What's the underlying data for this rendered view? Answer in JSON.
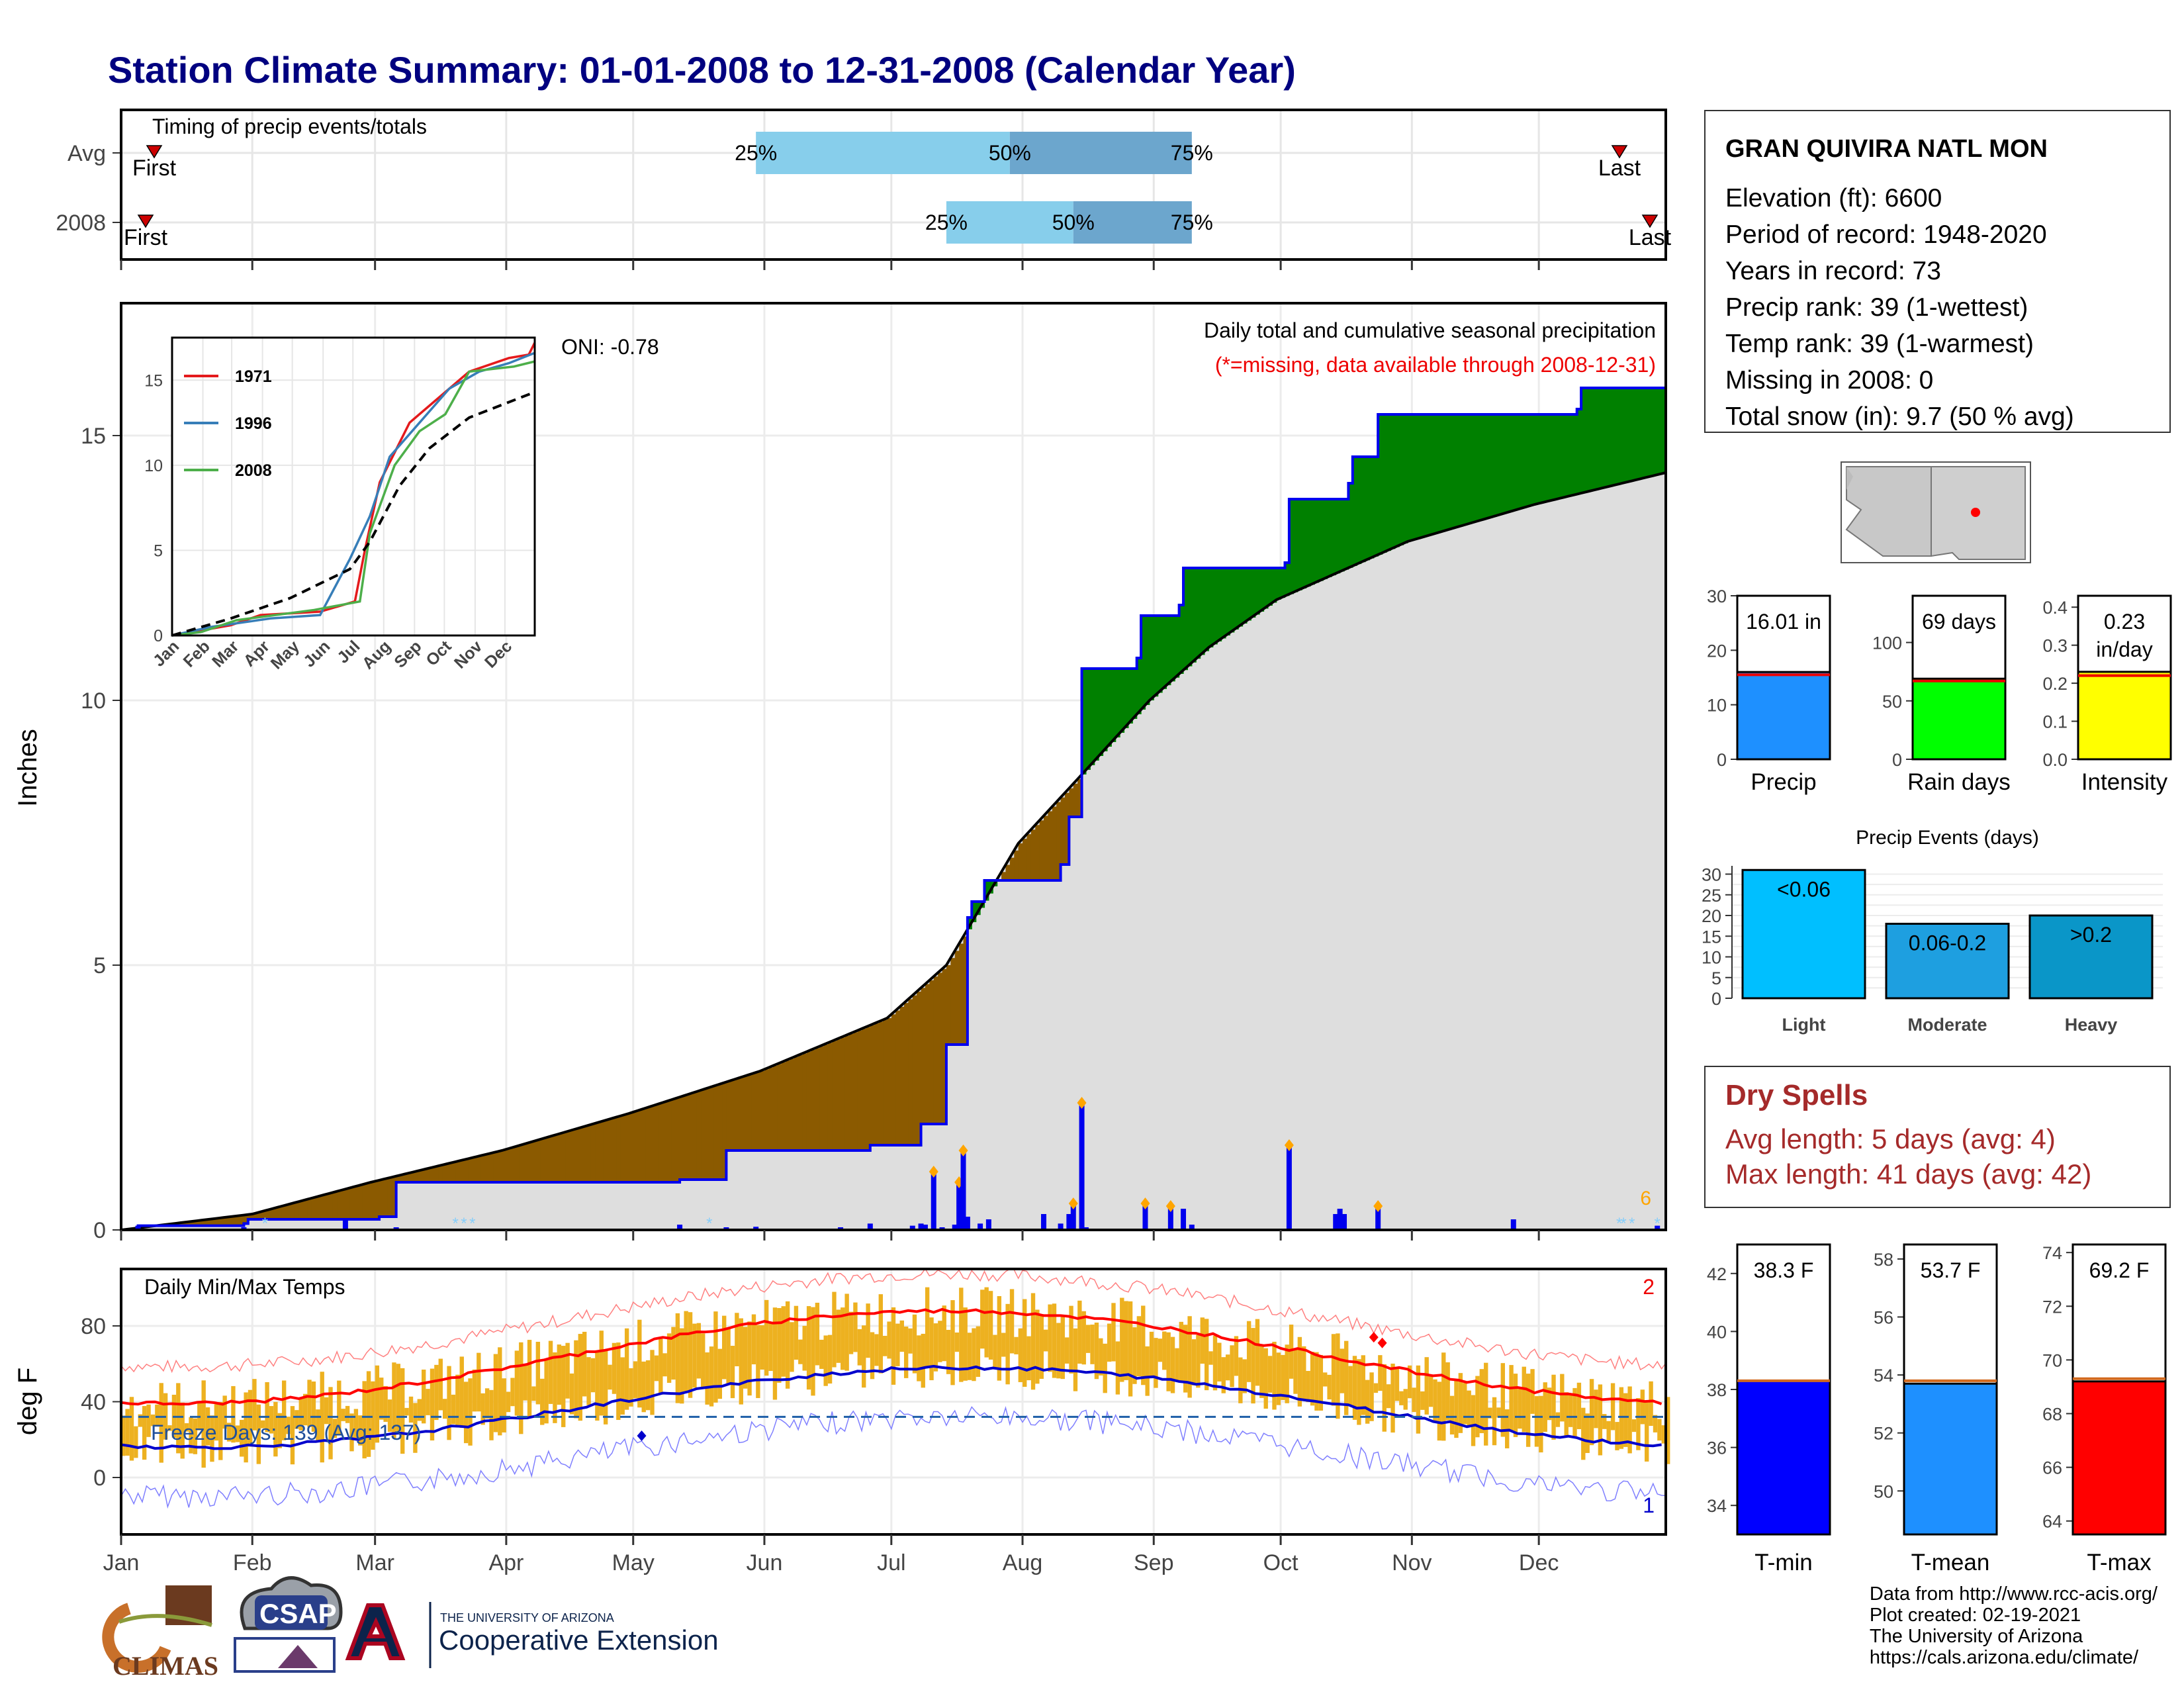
{
  "page": {
    "title": "Station Climate Summary: 01-01-2008 to 12-31-2008 (Calendar Year)"
  },
  "timing_panel": {
    "label": "Timing of precip events/totals",
    "rows": [
      {
        "label": "Avg",
        "first": "First",
        "last": "Last",
        "first_doy": 1,
        "last_doy": 362,
        "p25_doy": 151,
        "p50_doy": 211,
        "p75_doy": 254,
        "p25": "25%",
        "p50": "50%",
        "p75": "75%"
      },
      {
        "label": "2008",
        "first": "First",
        "last": "Last",
        "first_doy": 1,
        "last_doy": 366,
        "p25_doy": 196,
        "p50_doy": 226,
        "p75_doy": 254,
        "p25": "25%",
        "p50": "50%",
        "p75": "75%"
      }
    ]
  },
  "precip_panel": {
    "ylabel": "Inches",
    "annotation_title": "Daily total and cumulative seasonal precipitation",
    "annotation_missing": "(*=missing, data available through 2008-12-31)",
    "oni": "ONI: -0.78",
    "corner_count": "6",
    "yticks": [
      "0",
      "5",
      "10",
      "15"
    ]
  },
  "temp_panel": {
    "title": "Daily Min/Max Temps",
    "ylabel": "deg F",
    "freeze": "Freeze Days: 139 (Avg: 137)",
    "count_hot": "2",
    "count_cold": "1",
    "yticks": [
      "0",
      "40",
      "80"
    ]
  },
  "months": [
    "Jan",
    "Feb",
    "Mar",
    "Apr",
    "May",
    "Jun",
    "Jul",
    "Aug",
    "Sep",
    "Oct",
    "Nov",
    "Dec"
  ],
  "station": {
    "name": "GRAN QUIVIRA NATL MON",
    "lines": [
      "Elevation (ft): 6600",
      "Period of record: 1948-2020",
      "Years in record: 73",
      "Precip rank: 39 (1-wettest)",
      "Temp rank: 39 (1-warmest)",
      "Missing in 2008: 0",
      "Total snow (in): 9.7 (50 % avg)"
    ]
  },
  "dry_spells": {
    "title": "Dry Spells",
    "avg": "Avg length: 5 days (avg: 4)",
    "max": "Max length: 41 days (avg: 42)"
  },
  "credits": [
    "Data from http://www.rcc-acis.org/",
    "Plot created: 02-19-2021",
    "The University of Arizona",
    "https://cals.arizona.edu/climate/"
  ],
  "logos": {
    "climas": "CLIMAS",
    "csap": "CSAP",
    "ua_line1": "THE UNIVERSITY OF ARIZONA",
    "ua_line2": "Cooperative Extension"
  },
  "colors": {
    "above_normal": "#008000",
    "below_normal": "#8B5A00",
    "normal_fill": "#DEDEDE",
    "obs_line": "#0000EE",
    "tmax": "#FF0000",
    "tmin": "#0000CC",
    "bars": "#EDB120",
    "title": "#000080",
    "dry": "#A52A2A"
  },
  "chart_data": [
    {
      "id": "cumulative_precip",
      "type": "line",
      "xlabel": "",
      "ylabel": "Inches",
      "ylim": [
        0,
        17.5
      ],
      "x": [
        "Jan",
        "Feb",
        "Mar",
        "Apr",
        "May",
        "Jun",
        "Jul",
        "Aug",
        "Sep",
        "Oct",
        "Nov",
        "Dec"
      ],
      "series": [
        {
          "values_doy": [
            [
              1,
              0
            ],
            [
              5,
              0.08
            ],
            [
              30,
              0.12
            ],
            [
              31,
              0.2
            ],
            [
              62,
              0.25
            ],
            [
              66,
              0.9
            ],
            [
              133,
              0.95
            ],
            [
              144,
              1.5
            ],
            [
              178,
              1.6
            ],
            [
              190,
              2.0
            ],
            [
              196,
              3.5
            ],
            [
              201,
              5.9
            ],
            [
              202,
              6.2
            ],
            [
              205,
              6.6
            ],
            [
              223,
              6.9
            ],
            [
              225,
              7.8
            ],
            [
              228,
              10.6
            ],
            [
              241,
              10.8
            ],
            [
              242,
              11.6
            ],
            [
              251,
              11.8
            ],
            [
              252,
              12.5
            ],
            [
              276,
              12.6
            ],
            [
              277,
              13.8
            ],
            [
              291,
              14.1
            ],
            [
              292,
              14.6
            ],
            [
              298,
              15.4
            ],
            [
              345,
              15.5
            ],
            [
              346,
              15.9
            ],
            [
              366,
              16.1
            ]
          ]
        },
        {
          "values_doy": [
            [
              1,
              0
            ],
            [
              32,
              0.3
            ],
            [
              60,
              0.9
            ],
            [
              91,
              1.5
            ],
            [
              121,
              2.2
            ],
            [
              152,
              3.0
            ],
            [
              182,
              4.0
            ],
            [
              196,
              5.0
            ],
            [
              213,
              7.3
            ],
            [
              228,
              8.6
            ],
            [
              244,
              10.0
            ],
            [
              258,
              11.0
            ],
            [
              274,
              11.9
            ],
            [
              305,
              13.0
            ],
            [
              335,
              13.7
            ],
            [
              366,
              14.3
            ]
          ]
        }
      ],
      "daily_events": [
        {
          "doy": 5,
          "value": 0.08
        },
        {
          "doy": 30,
          "value": 0.05
        },
        {
          "doy": 54,
          "value": 0.18
        },
        {
          "doy": 66,
          "value": 0.05
        },
        {
          "doy": 133,
          "value": 0.1
        },
        {
          "doy": 144,
          "value": 0.05
        },
        {
          "doy": 151,
          "value": 0.06
        },
        {
          "doy": 171,
          "value": 0.05
        },
        {
          "doy": 178,
          "value": 0.12
        },
        {
          "doy": 188,
          "value": 0.08
        },
        {
          "doy": 190,
          "value": 0.12
        },
        {
          "doy": 191,
          "value": 0.1
        },
        {
          "doy": 193,
          "value": 1.1
        },
        {
          "doy": 195,
          "value": 0.05
        },
        {
          "doy": 198,
          "value": 0.1
        },
        {
          "doy": 199,
          "value": 0.9
        },
        {
          "doy": 200,
          "value": 1.5
        },
        {
          "doy": 201,
          "value": 0.25
        },
        {
          "doy": 204,
          "value": 0.12
        },
        {
          "doy": 206,
          "value": 0.2
        },
        {
          "doy": 219,
          "value": 0.3
        },
        {
          "doy": 223,
          "value": 0.12
        },
        {
          "doy": 225,
          "value": 0.3
        },
        {
          "doy": 226,
          "value": 0.5
        },
        {
          "doy": 228,
          "value": 2.4
        },
        {
          "doy": 229,
          "value": 0.05
        },
        {
          "doy": 243,
          "value": 0.5
        },
        {
          "doy": 249,
          "value": 0.45
        },
        {
          "doy": 252,
          "value": 0.4
        },
        {
          "doy": 254,
          "value": 0.1
        },
        {
          "doy": 277,
          "value": 1.6
        },
        {
          "doy": 288,
          "value": 0.3
        },
        {
          "doy": 289,
          "value": 0.4
        },
        {
          "doy": 290,
          "value": 0.3
        },
        {
          "doy": 298,
          "value": 0.45
        },
        {
          "doy": 330,
          "value": 0.2
        },
        {
          "doy": 364,
          "value": 0.08
        }
      ]
    },
    {
      "id": "inset_cumulative",
      "type": "line",
      "xlabel": "",
      "ylabel": "",
      "ylim": [
        0,
        17.5
      ],
      "x": [
        "Jan",
        "Feb",
        "Mar",
        "Apr",
        "May",
        "Jun",
        "Jul",
        "Aug",
        "Sep",
        "Oct",
        "Nov",
        "Dec"
      ],
      "series": [
        {
          "name": "1971",
          "color": "#E41A1C",
          "values_doy": [
            [
              1,
              0
            ],
            [
              60,
              0.6
            ],
            [
              90,
              1.2
            ],
            [
              150,
              1.4
            ],
            [
              185,
              2.0
            ],
            [
              195,
              5.0
            ],
            [
              210,
              9.0
            ],
            [
              240,
              12.5
            ],
            [
              270,
              14.0
            ],
            [
              300,
              15.5
            ],
            [
              340,
              16.3
            ],
            [
              360,
              16.5
            ],
            [
              366,
              17.2
            ]
          ]
        },
        {
          "name": "1996",
          "color": "#377EB8",
          "values_doy": [
            [
              1,
              0
            ],
            [
              40,
              0.5
            ],
            [
              100,
              1.0
            ],
            [
              150,
              1.2
            ],
            [
              180,
              4.5
            ],
            [
              200,
              7.0
            ],
            [
              220,
              10.5
            ],
            [
              250,
              12.5
            ],
            [
              280,
              14.5
            ],
            [
              310,
              15.5
            ],
            [
              340,
              16.0
            ],
            [
              366,
              16.6
            ]
          ]
        },
        {
          "name": "2008",
          "color": "#4DAF4A",
          "values_doy": [
            [
              1,
              0
            ],
            [
              30,
              0.2
            ],
            [
              66,
              0.9
            ],
            [
              144,
              1.5
            ],
            [
              190,
              2.0
            ],
            [
              200,
              6.0
            ],
            [
              225,
              10.0
            ],
            [
              250,
              12.0
            ],
            [
              276,
              13.0
            ],
            [
              300,
              15.5
            ],
            [
              345,
              15.8
            ],
            [
              366,
              16.1
            ]
          ]
        },
        {
          "name": "",
          "color": "#000000",
          "dash": true,
          "values_doy": [
            [
              1,
              0
            ],
            [
              60,
              1.0
            ],
            [
              120,
              2.2
            ],
            [
              180,
              3.9
            ],
            [
              200,
              5.5
            ],
            [
              230,
              8.8
            ],
            [
              260,
              11.0
            ],
            [
              300,
              12.8
            ],
            [
              366,
              14.3
            ]
          ]
        }
      ],
      "yticks": [
        0,
        5,
        10,
        15
      ]
    },
    {
      "id": "summary_bars_precip",
      "type": "bar",
      "categories": [
        "Precip"
      ],
      "values": [
        16.01
      ],
      "label": "16.01 in",
      "ylim": [
        0,
        30
      ],
      "avg": 15.5,
      "yticks": [
        0,
        10,
        20,
        30
      ],
      "color": "#1E90FF"
    },
    {
      "id": "summary_bars_raindays",
      "type": "bar",
      "categories": [
        "Rain days"
      ],
      "values": [
        69
      ],
      "label": "69 days",
      "ylim": [
        0,
        140
      ],
      "avg": 67,
      "yticks": [
        0,
        50,
        100
      ],
      "color": "#00FF00"
    },
    {
      "id": "summary_bars_intensity",
      "type": "bar",
      "categories": [
        "Intensity"
      ],
      "values": [
        0.23
      ],
      "label": "0.23",
      "unit": "in/day",
      "ylim": [
        0,
        0.43
      ],
      "avg": 0.22,
      "yticks": [
        0.0,
        0.1,
        0.2,
        0.3,
        0.4
      ],
      "color": "#FFFF00"
    },
    {
      "id": "precip_events",
      "type": "bar",
      "title": "Precip Events (days)",
      "categories": [
        "Light",
        "Moderate",
        "Heavy"
      ],
      "values": [
        31,
        18,
        20
      ],
      "labels": [
        "<0.06",
        "0.06-0.2",
        ">0.2"
      ],
      "ylim": [
        0,
        32
      ],
      "yticks": [
        0,
        5,
        10,
        15,
        20,
        25,
        30
      ],
      "colors": [
        "#00BFFF",
        "#1E9FE0",
        "#0A96C8"
      ]
    },
    {
      "id": "temp_summary",
      "type": "bar",
      "categories": [
        "T-min",
        "T-mean",
        "T-max"
      ],
      "values": [
        38.3,
        53.7,
        69.2
      ],
      "labels": [
        "38.3 F",
        "53.7 F",
        "69.2 F"
      ],
      "ylims": [
        [
          33,
          43
        ],
        [
          48.5,
          58.5
        ],
        [
          63.5,
          74.3
        ]
      ],
      "avgs": [
        38.3,
        53.8,
        69.3
      ],
      "yticks": [
        [
          34,
          36,
          38,
          40,
          42
        ],
        [
          50,
          52,
          54,
          56,
          58
        ],
        [
          64,
          66,
          68,
          70,
          72,
          74
        ]
      ],
      "colors": [
        "#0000FF",
        "#1E90FF",
        "#FF0000"
      ]
    }
  ]
}
